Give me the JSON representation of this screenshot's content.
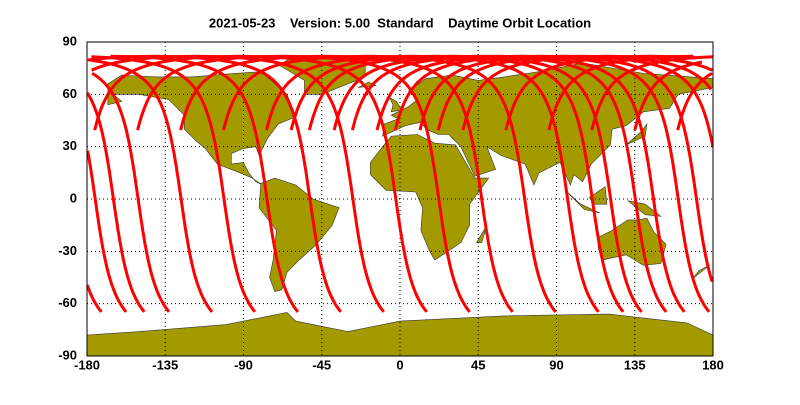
{
  "chart_data": {
    "type": "map",
    "title": "2021-05-23    Version: 5.00  Standard    Daytime Orbit Location",
    "xlim": [
      -180,
      180
    ],
    "xticks": [
      -180,
      -135,
      -90,
      -45,
      0,
      45,
      90,
      135,
      180
    ],
    "ylim": [
      -90,
      90
    ],
    "yticks": [
      -90,
      -60,
      -30,
      0,
      30,
      60,
      90
    ],
    "grid": true,
    "land_color": "#a39a00",
    "track_color": "#ff0000"
  }
}
